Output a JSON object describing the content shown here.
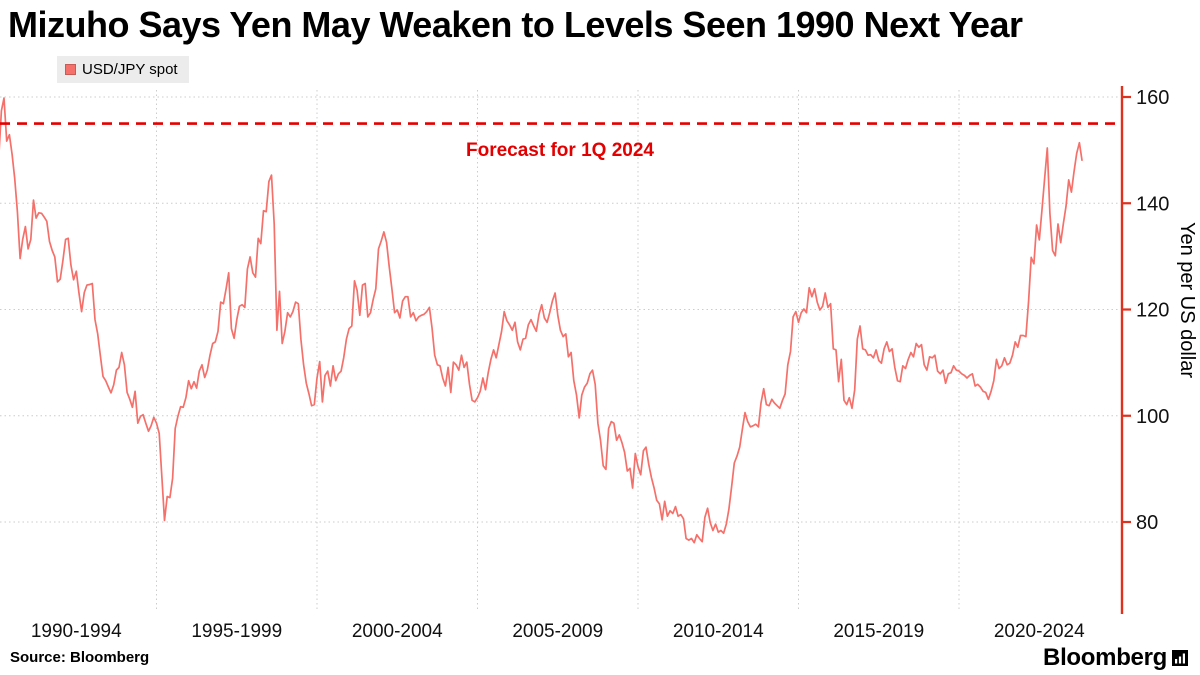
{
  "title": "Mizuho Says Yen May Weaken to Levels Seen 1990 Next Year",
  "legend": {
    "label": "USD/JPY spot"
  },
  "annotation": {
    "text": "Forecast for 1Q 2024"
  },
  "y_axis_label": "Yen per US dollar",
  "source": "Source: Bloomberg",
  "branding": "Bloomberg",
  "colors": {
    "line": "#f5706a",
    "axis": "#e0301e",
    "forecast": "#e30000",
    "grid": "#cccccc",
    "legend_bg": "#ececec"
  },
  "chart_data": {
    "type": "line",
    "series_name": "USD/JPY spot",
    "title": "Mizuho Says Yen May Weaken to Levels Seen 1990 Next Year",
    "ylabel": "Yen per US dollar",
    "x_axis_labels": [
      "1990-1994",
      "1995-1999",
      "2000-2004",
      "2005-2009",
      "2010-2014",
      "2015-2019",
      "2020-2024"
    ],
    "y_ticks": [
      80,
      100,
      120,
      140,
      160
    ],
    "x_range_years": [
      1990,
      2025
    ],
    "y_range": [
      63,
      162
    ],
    "grid": true,
    "legend_position": "top-left",
    "forecast_line_value": 155,
    "x_start_year": 1990,
    "x_step_months": 1,
    "values": [
      144.8,
      148.4,
      157.4,
      159.8,
      151.7,
      152.9,
      149.2,
      144.7,
      138.4,
      129.6,
      133.2,
      135.6,
      131.4,
      133.2,
      140.6,
      137.2,
      138.2,
      138.1,
      137.4,
      136.6,
      132.8,
      131.1,
      129.9,
      125.2,
      125.7,
      129.2,
      133.2,
      133.4,
      128.4,
      125.6,
      127.2,
      123.2,
      119.6,
      123.2,
      124.6,
      124.7,
      124.9,
      118.1,
      115.4,
      111.4,
      107.4,
      106.6,
      105.4,
      104.3,
      105.8,
      108.6,
      109.1,
      111.9,
      109.6,
      104.4,
      103.1,
      101.6,
      104.6,
      98.6,
      99.9,
      100.2,
      98.6,
      97.1,
      98.1,
      99.7,
      98.6,
      96.7,
      88.4,
      80.3,
      84.8,
      84.6,
      88.2,
      97.6,
      99.9,
      101.7,
      101.6,
      103.4,
      106.6,
      105.1,
      106.4,
      105.2,
      108.4,
      109.6,
      107.2,
      108.6,
      111.4,
      113.6,
      113.9,
      115.9,
      121.4,
      121.1,
      123.9,
      126.9,
      116.4,
      114.6,
      118.1,
      120.6,
      120.9,
      120.4,
      127.6,
      129.9,
      126.9,
      126.1,
      133.4,
      132.4,
      138.6,
      138.4,
      144.1,
      145.3,
      136.1,
      116.1,
      123.4,
      113.6,
      115.9,
      119.4,
      118.6,
      119.6,
      121.4,
      121.1,
      114.4,
      109.6,
      106.1,
      104.1,
      101.9,
      102.1,
      107.1,
      110.2,
      102.6,
      107.6,
      108.4,
      105.6,
      109.4,
      106.6,
      107.9,
      108.4,
      110.9,
      114.4,
      116.4,
      116.9,
      125.4,
      123.6,
      118.9,
      124.6,
      124.9,
      118.6,
      119.4,
      121.9,
      123.9,
      131.4,
      132.9,
      134.6,
      132.6,
      128.1,
      123.9,
      119.4,
      119.9,
      118.4,
      121.6,
      122.4,
      122.4,
      118.6,
      119.4,
      117.9,
      118.6,
      118.9,
      119.1,
      119.6,
      120.4,
      116.6,
      111.4,
      109.6,
      109.4,
      107.1,
      105.6,
      109.1,
      104.4,
      110.1,
      109.6,
      108.6,
      111.4,
      109.1,
      110.1,
      105.9,
      102.9,
      102.6,
      103.4,
      104.6,
      107.1,
      104.9,
      108.1,
      110.6,
      112.4,
      110.9,
      113.4,
      115.9,
      119.6,
      117.9,
      117.1,
      116.1,
      117.6,
      113.9,
      112.4,
      114.4,
      114.6,
      117.1,
      118.1,
      116.9,
      115.9,
      119.1,
      120.9,
      118.4,
      117.6,
      119.4,
      121.6,
      123.1,
      118.9,
      116.1,
      114.9,
      115.4,
      111.1,
      111.9,
      106.6,
      103.9,
      99.6,
      103.9,
      105.4,
      106.1,
      107.9,
      108.6,
      105.9,
      98.6,
      95.4,
      90.6,
      89.9,
      97.6,
      98.9,
      98.6,
      95.4,
      96.4,
      94.9,
      93.1,
      89.6,
      90.1,
      86.4,
      92.9,
      90.4,
      88.9,
      93.4,
      94.1,
      90.9,
      88.4,
      86.4,
      84.1,
      83.4,
      80.4,
      83.9,
      81.1,
      82.1,
      81.6,
      82.9,
      81.1,
      81.4,
      80.6,
      76.9,
      76.6,
      76.9,
      76.1,
      77.6,
      76.9,
      76.3,
      80.9,
      82.6,
      79.9,
      78.4,
      79.6,
      78.1,
      78.4,
      77.9,
      79.6,
      82.4,
      86.6,
      91.1,
      92.4,
      94.1,
      97.4,
      100.6,
      98.9,
      97.9,
      98.1,
      98.4,
      97.9,
      102.4,
      105.1,
      102.1,
      101.9,
      103.1,
      102.4,
      101.9,
      101.4,
      102.9,
      104.1,
      109.6,
      112.1,
      118.6,
      119.6,
      117.6,
      119.4,
      120.1,
      119.4,
      124.1,
      122.4,
      123.9,
      121.4,
      119.9,
      120.6,
      123.1,
      120.4,
      121.1,
      112.6,
      112.4,
      106.4,
      110.6,
      102.9,
      102.1,
      103.4,
      101.4,
      104.9,
      114.4,
      116.9,
      112.6,
      112.4,
      111.4,
      111.5,
      110.9,
      112.4,
      110.4,
      109.9,
      112.6,
      113.9,
      112.1,
      112.6,
      109.1,
      106.6,
      106.4,
      109.4,
      108.9,
      110.6,
      111.9,
      111.1,
      113.6,
      112.9,
      113.4,
      109.6,
      108.6,
      111.1,
      110.9,
      111.4,
      108.4,
      107.9,
      108.6,
      106.1,
      107.9,
      108.1,
      109.4,
      108.6,
      108.4,
      107.9,
      107.6,
      107.1,
      107.6,
      107.9,
      105.6,
      105.9,
      105.4,
      104.6,
      104.4,
      103.1,
      104.6,
      106.6,
      110.6,
      108.9,
      109.4,
      110.9,
      109.6,
      109.9,
      111.4,
      113.9,
      112.9,
      115.1,
      115.1,
      114.9,
      121.6,
      129.8,
      128.6,
      135.9,
      133.1,
      138.6,
      144.6,
      150.4,
      138.1,
      131.1,
      130.1,
      136.1,
      132.6,
      136.1,
      139.4,
      144.4,
      142.1,
      145.9,
      149.4,
      151.4,
      148.1
    ]
  }
}
